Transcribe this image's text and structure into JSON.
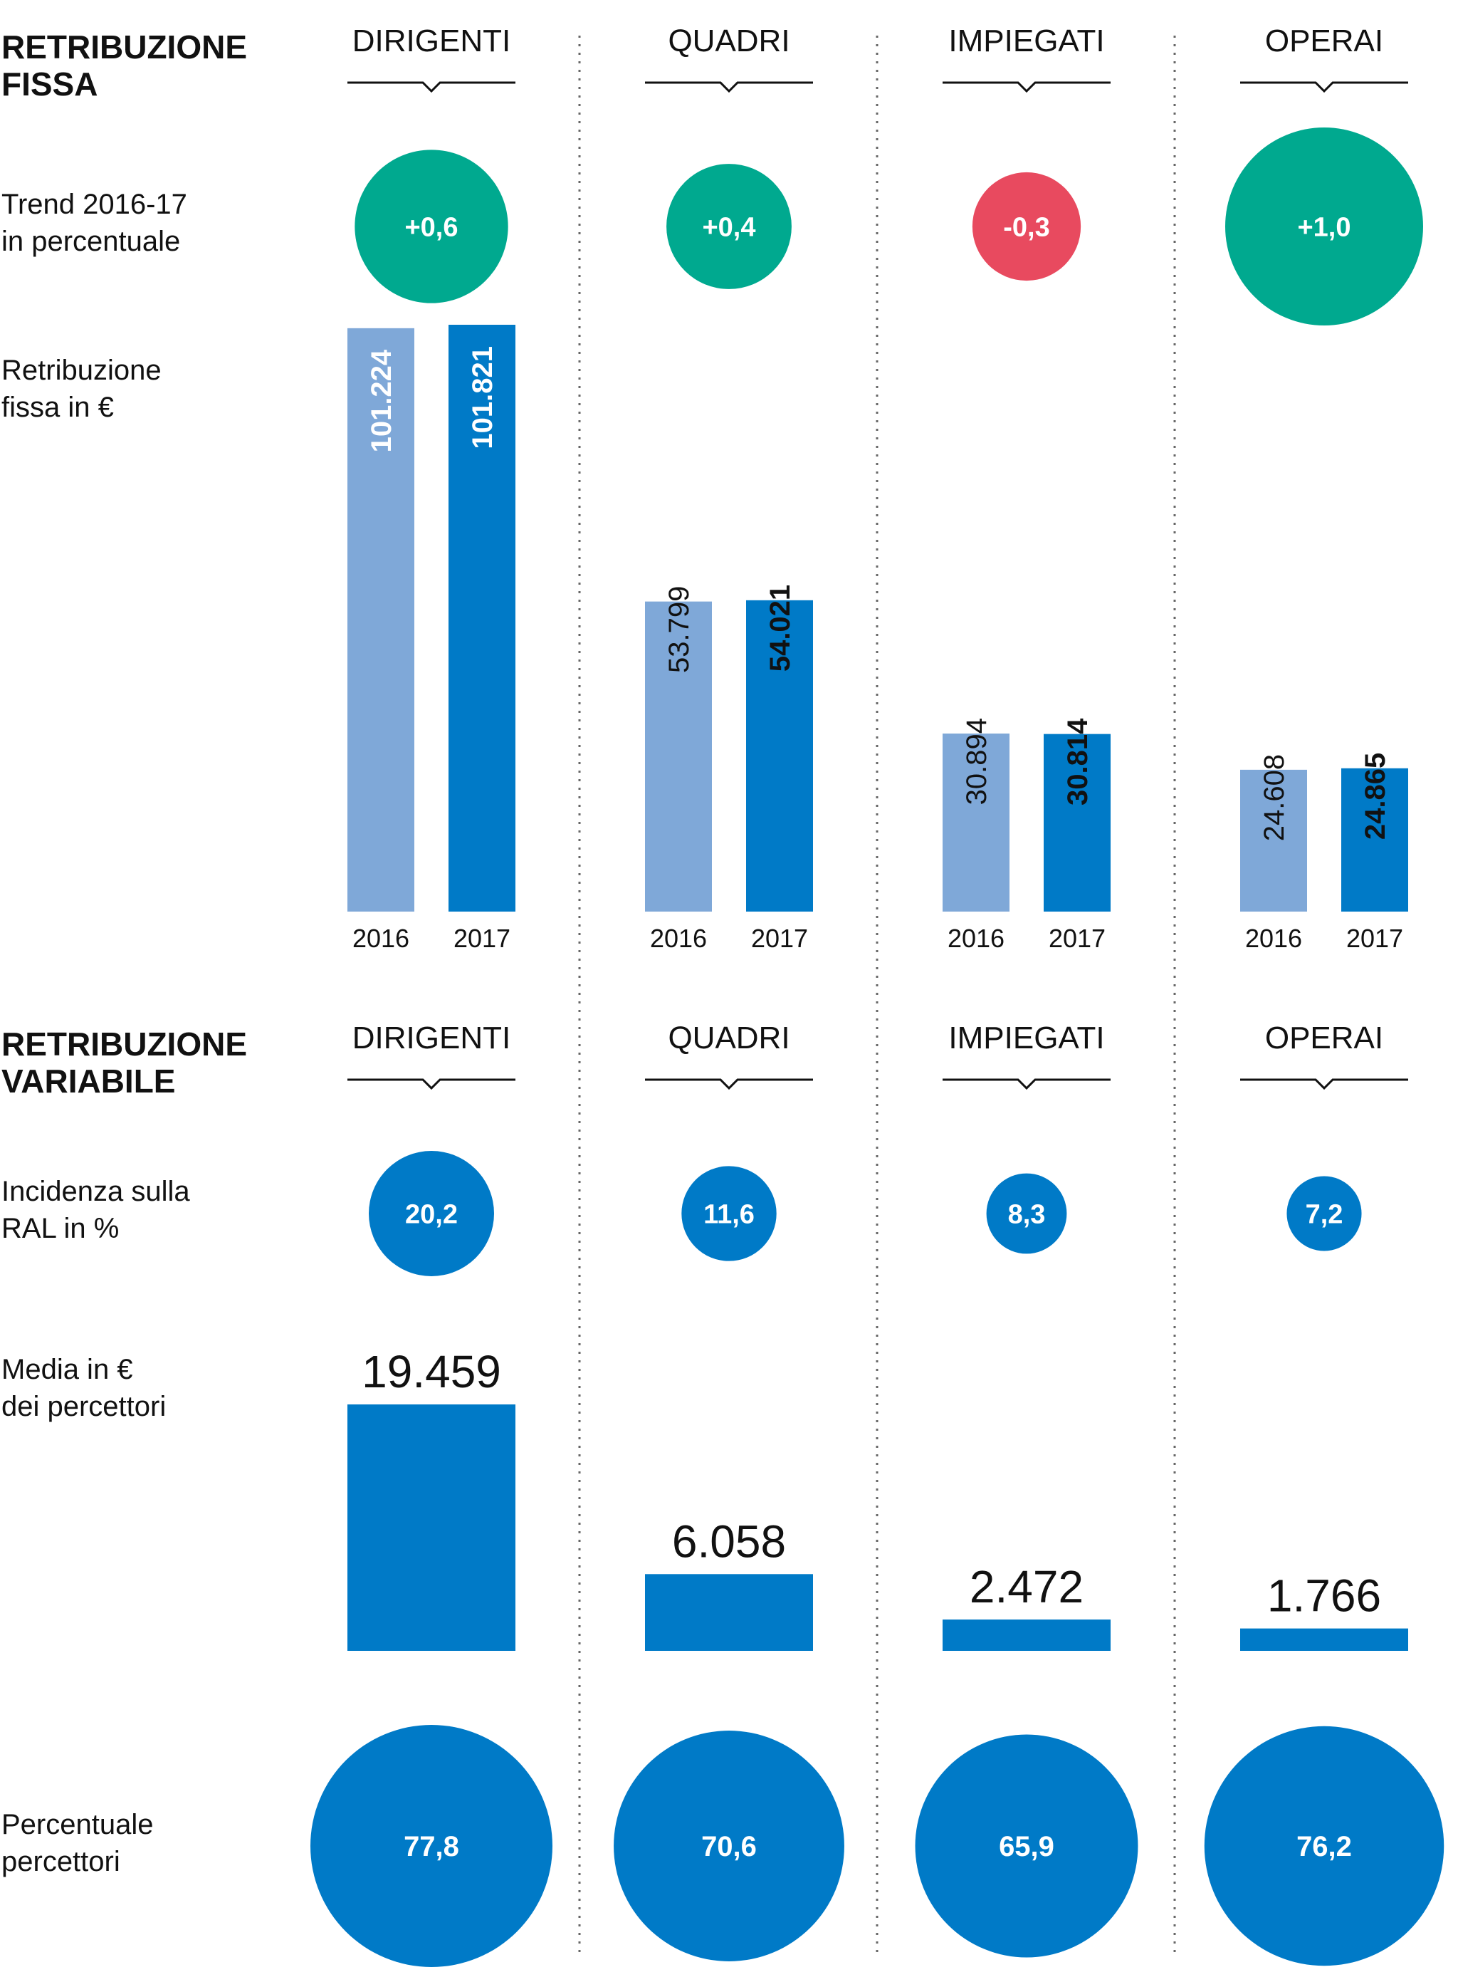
{
  "colors": {
    "positive": "#00a98f",
    "negative": "#e84a5f",
    "bar_2016": "#7fa8d8",
    "bar_2017": "#007ac7",
    "accent": "#007ac7",
    "text": "#111111",
    "divider": "#666666"
  },
  "categories": [
    "DIRIGENTI",
    "QUADRI",
    "IMPIEGATI",
    "OPERAI"
  ],
  "fixed_section": {
    "title_line1": "RETRIBUZIONE",
    "title_line2": "FISSA",
    "trend_label_line1": "Trend 2016-17",
    "trend_label_line2": "in percentuale",
    "salary_label_line1": "Retribuzione",
    "salary_label_line2": "fissa in €"
  },
  "variable_section": {
    "title_line1": "RETRIBUZIONE",
    "title_line2": "VARIABILE",
    "incidence_label_line1": "Incidenza sulla",
    "incidence_label_line2": "RAL in %",
    "average_label_line1": "Media in €",
    "average_label_line2": "dei percettori",
    "share_label_line1": "Percentuale",
    "share_label_line2": "percettori"
  },
  "chart_data": [
    {
      "type": "bubble",
      "name": "Trend 2016-17 in percentuale",
      "categories": [
        "DIRIGENTI",
        "QUADRI",
        "IMPIEGATI",
        "OPERAI"
      ],
      "values": [
        0.6,
        0.4,
        -0.3,
        1.0
      ],
      "labels": [
        "+0,6",
        "+0,4",
        "-0,3",
        "+1,0"
      ]
    },
    {
      "type": "bar",
      "name": "Retribuzione fissa in €",
      "categories": [
        "DIRIGENTI",
        "QUADRI",
        "IMPIEGATI",
        "OPERAI"
      ],
      "x": [
        "2016",
        "2017"
      ],
      "series": [
        {
          "name": "2016",
          "values": [
            101224,
            53799,
            30894,
            24608
          ],
          "labels": [
            "101.224",
            "53.799",
            "30.894",
            "24.608"
          ]
        },
        {
          "name": "2017",
          "values": [
            101821,
            54021,
            30814,
            24865
          ],
          "labels": [
            "101.821",
            "54.021",
            "30.814",
            "24.865"
          ]
        }
      ],
      "ylim": [
        0,
        101821
      ]
    },
    {
      "type": "bubble",
      "name": "Incidenza sulla RAL in %",
      "categories": [
        "DIRIGENTI",
        "QUADRI",
        "IMPIEGATI",
        "OPERAI"
      ],
      "values": [
        20.2,
        11.6,
        8.3,
        7.2
      ],
      "labels": [
        "20,2",
        "11,6",
        "8,3",
        "7,2"
      ]
    },
    {
      "type": "bar",
      "name": "Media in € dei percettori",
      "categories": [
        "DIRIGENTI",
        "QUADRI",
        "IMPIEGATI",
        "OPERAI"
      ],
      "values": [
        19459,
        6058,
        2472,
        1766
      ],
      "labels": [
        "19.459",
        "6.058",
        "2.472",
        "1.766"
      ],
      "ylim": [
        0,
        19459
      ]
    },
    {
      "type": "bubble",
      "name": "Percentuale percettori",
      "categories": [
        "DIRIGENTI",
        "QUADRI",
        "IMPIEGATI",
        "OPERAI"
      ],
      "values": [
        77.8,
        70.6,
        65.9,
        76.2
      ],
      "labels": [
        "77,8",
        "70,6",
        "65,9",
        "76,2"
      ]
    }
  ]
}
